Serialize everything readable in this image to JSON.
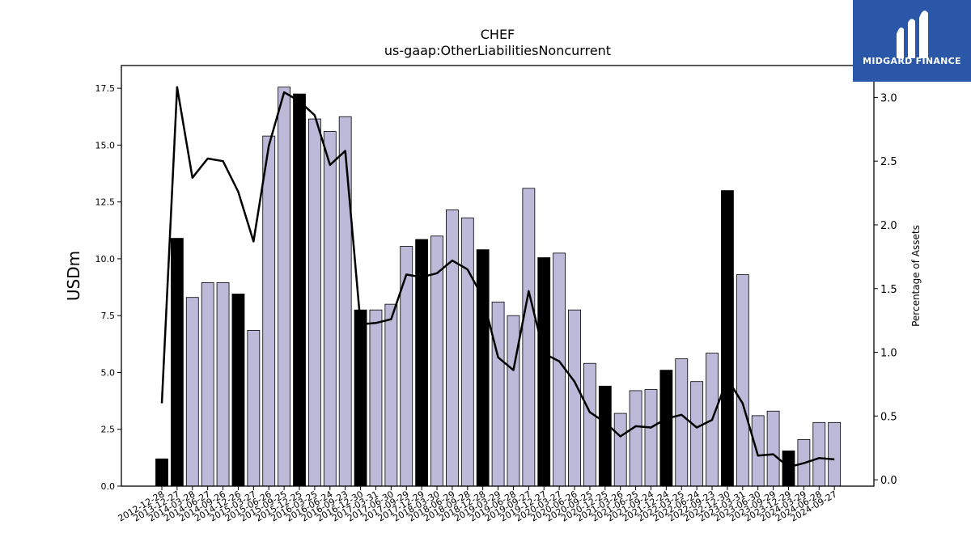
{
  "header": {
    "title": "CHEF",
    "subtitle": "us-gaap:OtherLiabilitiesNoncurrent"
  },
  "logo": {
    "text": "MIDGARD FINANCE",
    "color": "#2a57a8"
  },
  "chart_data": {
    "type": "bar",
    "title": "CHEF",
    "subtitle": "us-gaap:OtherLiabilitiesNoncurrent",
    "ylabel": "USDm",
    "y2label": "Percentage of Assets",
    "ylim": [
      0,
      18.5
    ],
    "y2lim": [
      -0.05,
      3.25
    ],
    "yticks": [
      "0.0",
      "2.5",
      "5.0",
      "7.5",
      "10.0",
      "12.5",
      "15.0",
      "17.5"
    ],
    "y2ticks": [
      "0.0",
      "0.5",
      "1.0",
      "1.5",
      "2.0",
      "2.5",
      "3.0"
    ],
    "categories": [
      "2012-12-28",
      "2013-12-27",
      "2014-03-28",
      "2014-06-27",
      "2014-09-26",
      "2014-12-26",
      "2015-03-27",
      "2015-06-26",
      "2015-09-25",
      "2015-12-25",
      "2016-03-25",
      "2016-06-24",
      "2016-09-23",
      "2016-12-30",
      "2017-03-31",
      "2017-06-30",
      "2017-09-29",
      "2017-12-29",
      "2018-03-30",
      "2018-06-29",
      "2018-09-28",
      "2018-12-28",
      "2019-03-29",
      "2019-06-28",
      "2019-09-27",
      "2019-12-27",
      "2020-03-27",
      "2020-06-26",
      "2020-09-25",
      "2020-12-25",
      "2021-03-26",
      "2021-06-25",
      "2021-09-24",
      "2021-12-24",
      "2022-03-25",
      "2022-06-24",
      "2022-09-23",
      "2022-12-30",
      "2023-03-31",
      "2023-06-30",
      "2023-09-29",
      "2023-12-29",
      "2024-03-29",
      "2024-06-28",
      "2024-09-27"
    ],
    "bar_values": [
      1.2,
      10.9,
      8.3,
      8.95,
      8.95,
      8.45,
      6.85,
      15.4,
      17.55,
      17.25,
      16.15,
      15.6,
      16.25,
      7.75,
      7.75,
      8.0,
      10.55,
      10.85,
      11.0,
      12.15,
      11.8,
      10.4,
      8.1,
      7.5,
      13.1,
      10.05,
      10.25,
      7.75,
      5.4,
      4.4,
      3.2,
      4.2,
      4.25,
      5.1,
      5.6,
      4.6,
      5.85,
      13.0,
      9.3,
      3.1,
      3.3,
      1.55,
      2.05,
      2.8,
      2.8
    ],
    "bar_highlight": [
      true,
      true,
      false,
      false,
      false,
      true,
      false,
      false,
      false,
      true,
      false,
      false,
      false,
      true,
      false,
      false,
      false,
      true,
      false,
      false,
      false,
      true,
      false,
      false,
      false,
      true,
      false,
      false,
      false,
      true,
      false,
      false,
      false,
      true,
      false,
      false,
      false,
      true,
      false,
      false,
      false,
      true,
      false,
      false,
      false
    ],
    "line_name": "Percentage of Assets",
    "line_values": [
      0.6,
      3.08,
      2.37,
      2.52,
      2.5,
      2.26,
      1.87,
      2.62,
      3.04,
      2.97,
      2.86,
      2.47,
      2.58,
      1.22,
      1.23,
      1.26,
      1.61,
      1.59,
      1.62,
      1.72,
      1.65,
      1.43,
      0.96,
      0.86,
      1.48,
      0.99,
      0.93,
      0.77,
      0.53,
      0.45,
      0.34,
      0.42,
      0.41,
      0.48,
      0.51,
      0.41,
      0.47,
      0.79,
      0.6,
      0.19,
      0.2,
      0.1,
      0.13,
      0.17,
      0.16
    ],
    "colors": {
      "bar_fill": "#bcb9d9",
      "bar_highlight": "#000000",
      "bar_edge": "#000000",
      "line": "#000000"
    },
    "grid": false,
    "legend": "none"
  }
}
